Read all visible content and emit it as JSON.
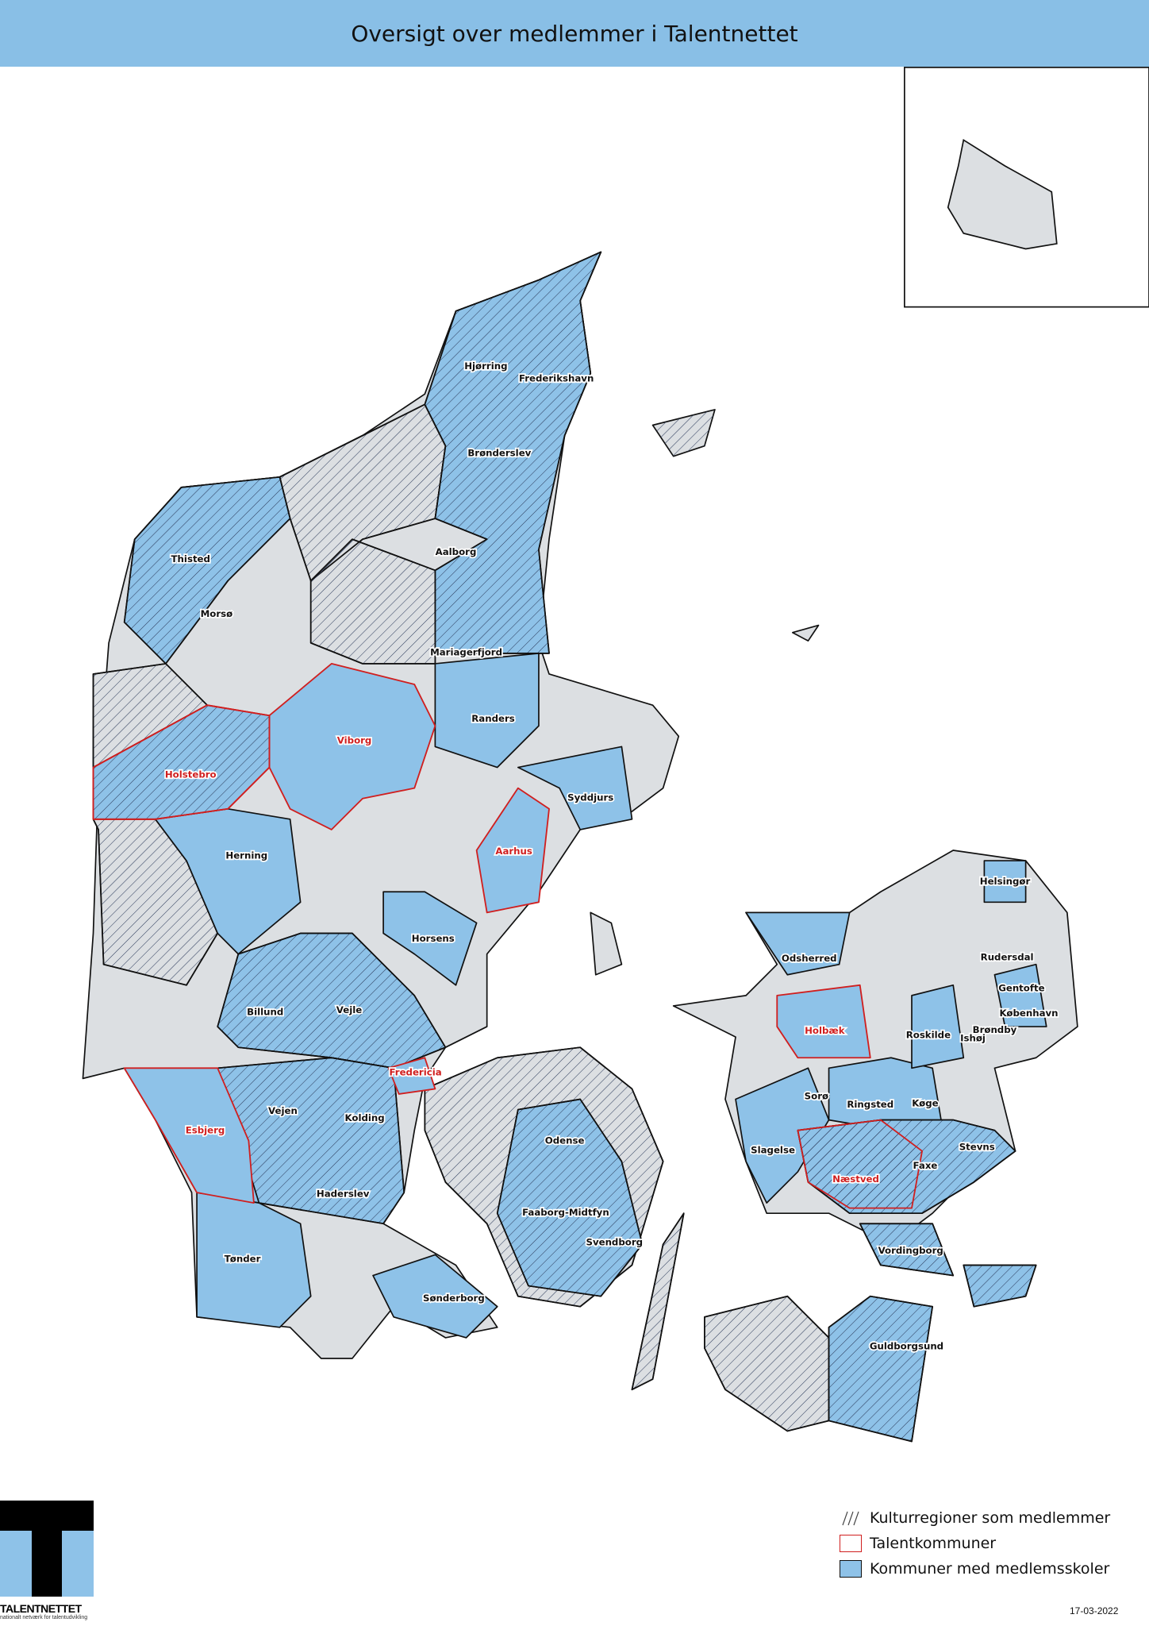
{
  "title": "Oversigt over medlemmer i Talentnettet",
  "colors": {
    "member_fill": "#8ec2e8",
    "other_fill": "#dcdfe2",
    "talent_outline": "#d01f1f",
    "title_bar": "#89bfe6",
    "hatch": "#2b3a5a"
  },
  "labels": [
    {
      "name": "Hjørring",
      "talent": false
    },
    {
      "name": "Frederikshavn",
      "talent": false
    },
    {
      "name": "Brønderslev",
      "talent": false
    },
    {
      "name": "Thisted",
      "talent": false
    },
    {
      "name": "Aalborg",
      "talent": false
    },
    {
      "name": "Morsø",
      "talent": false
    },
    {
      "name": "Mariagerfjord",
      "talent": false
    },
    {
      "name": "Randers",
      "talent": false
    },
    {
      "name": "Viborg",
      "talent": true
    },
    {
      "name": "Holstebro",
      "talent": true
    },
    {
      "name": "Syddjurs",
      "talent": false
    },
    {
      "name": "Aarhus",
      "talent": true
    },
    {
      "name": "Herning",
      "talent": false
    },
    {
      "name": "Horsens",
      "talent": false
    },
    {
      "name": "Billund",
      "talent": false
    },
    {
      "name": "Vejle",
      "talent": false
    },
    {
      "name": "Fredericia",
      "talent": true
    },
    {
      "name": "Vejen",
      "talent": false
    },
    {
      "name": "Kolding",
      "talent": false
    },
    {
      "name": "Esbjerg",
      "talent": true
    },
    {
      "name": "Haderslev",
      "talent": false
    },
    {
      "name": "Tønder",
      "talent": false
    },
    {
      "name": "Sønderborg",
      "talent": false
    },
    {
      "name": "Odense",
      "talent": false
    },
    {
      "name": "Faaborg-Midtfyn",
      "talent": false
    },
    {
      "name": "Svendborg",
      "talent": false
    },
    {
      "name": "Helsingør",
      "talent": false
    },
    {
      "name": "Odsherred",
      "talent": false
    },
    {
      "name": "Rudersdal",
      "talent": false
    },
    {
      "name": "Gentofte",
      "talent": false
    },
    {
      "name": "København",
      "talent": false
    },
    {
      "name": "Holbæk",
      "talent": true
    },
    {
      "name": "Roskilde",
      "talent": false
    },
    {
      "name": "Brøndby",
      "talent": false
    },
    {
      "name": "Ishøj",
      "talent": false
    },
    {
      "name": "Sorø",
      "talent": false
    },
    {
      "name": "Ringsted",
      "talent": false
    },
    {
      "name": "Køge",
      "talent": false
    },
    {
      "name": "Slagelse",
      "talent": false
    },
    {
      "name": "Stevns",
      "talent": false
    },
    {
      "name": "Næstved",
      "talent": true
    },
    {
      "name": "Faxe",
      "talent": false
    },
    {
      "name": "Vordingborg",
      "talent": false
    },
    {
      "name": "Guldborgsund",
      "talent": false
    }
  ],
  "legend": [
    {
      "label": "Kulturregioner som medlemmer",
      "symbol": "hatch"
    },
    {
      "label": "Talentkommuner",
      "symbol": "red-outline"
    },
    {
      "label": "Kommuner med medlemsskoler",
      "symbol": "blue-fill"
    }
  ],
  "logo": {
    "name": "TALENTNETTET",
    "tagline": "nationalt netværk for talentudvikling"
  },
  "date": "17-03-2022"
}
